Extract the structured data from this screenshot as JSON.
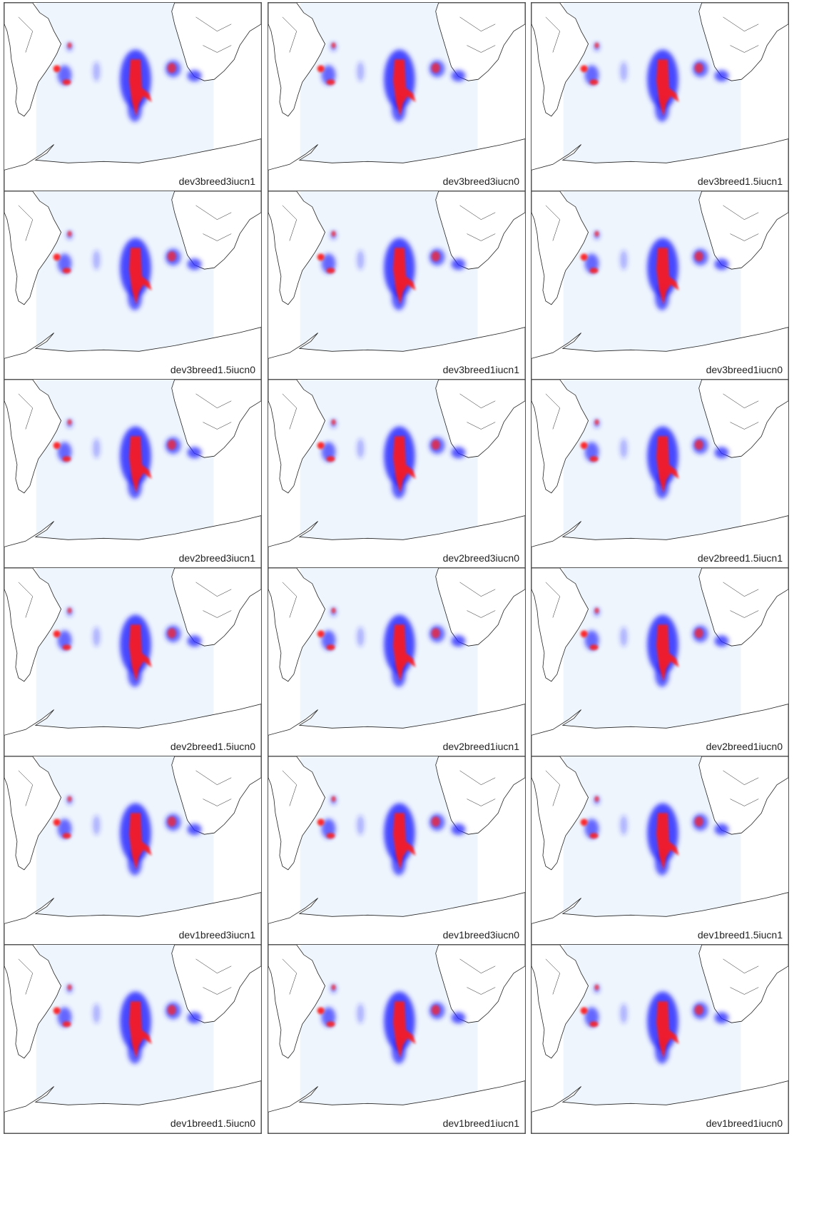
{
  "figure": {
    "colors": {
      "region_fill": "#eef5fd",
      "coast": "#222222",
      "high": "#ff1a1a",
      "low": "#2a2aff"
    },
    "panels": [
      {
        "label": "dev3breed3iucn1"
      },
      {
        "label": "dev3breed3iucn0"
      },
      {
        "label": "dev3breed1.5iucn1"
      },
      {
        "label": "dev3breed1.5iucn0"
      },
      {
        "label": "dev3breed1iucn1"
      },
      {
        "label": "dev3breed1iucn0"
      },
      {
        "label": "dev2breed3iucn1"
      },
      {
        "label": "dev2breed3iucn0"
      },
      {
        "label": "dev2breed1.5iucn1"
      },
      {
        "label": "dev2breed1.5iucn0"
      },
      {
        "label": "dev2breed1iucn1"
      },
      {
        "label": "dev2breed1iucn0"
      },
      {
        "label": "dev1breed3iucn1"
      },
      {
        "label": "dev1breed3iucn0"
      },
      {
        "label": "dev1breed1.5iucn1"
      },
      {
        "label": "dev1breed1.5iucn0"
      },
      {
        "label": "dev1breed1iucn1"
      },
      {
        "label": "dev1breed1iucn0"
      }
    ]
  }
}
